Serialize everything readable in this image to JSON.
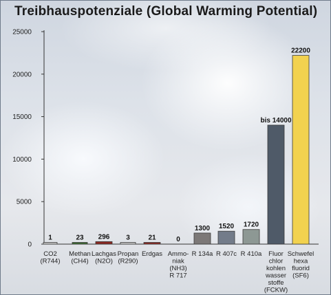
{
  "title": "Treibhauspotenziale (Global Warming Potential)",
  "chart_data": {
    "type": "bar",
    "title": "Treibhauspotenziale (Global Warming Potential)",
    "xlabel": "",
    "ylabel": "",
    "ylim": [
      0,
      25000
    ],
    "yticks": [
      0,
      5000,
      10000,
      15000,
      20000,
      25000
    ],
    "grid": false,
    "categories": [
      [
        "CO2",
        "(R744)"
      ],
      [
        "Methan",
        "(CH4)"
      ],
      [
        "Lachgas",
        "(N2O)"
      ],
      [
        "Propan",
        "(R290)"
      ],
      [
        "Erdgas"
      ],
      [
        "Ammo-",
        "niak",
        "(NH3)",
        "R 717"
      ],
      [
        "R 134a"
      ],
      [
        "R 407c"
      ],
      [
        "R 410a"
      ],
      [
        "Fluor",
        "chlor",
        "kohlen",
        "wasser",
        "stoffe",
        "(FCKW)"
      ],
      [
        "Schwefel",
        "hexa",
        "fluorid",
        "(SF6)"
      ]
    ],
    "values": [
      1,
      23,
      296,
      3,
      21,
      0,
      1300,
      1520,
      1720,
      14000,
      22200
    ],
    "value_labels": [
      "1",
      "23",
      "296",
      "3",
      "21",
      "0",
      "1300",
      "1520",
      "1720",
      "bis 14000",
      "22200"
    ],
    "colors": [
      "#c8c8c8",
      "#3e6b34",
      "#8c2a24",
      "#c8c8c8",
      "#8c2a24",
      "#c8c8c8",
      "#7c7877",
      "#737c8a",
      "#8d9894",
      "#4f5a68",
      "#f2d24f"
    ]
  }
}
